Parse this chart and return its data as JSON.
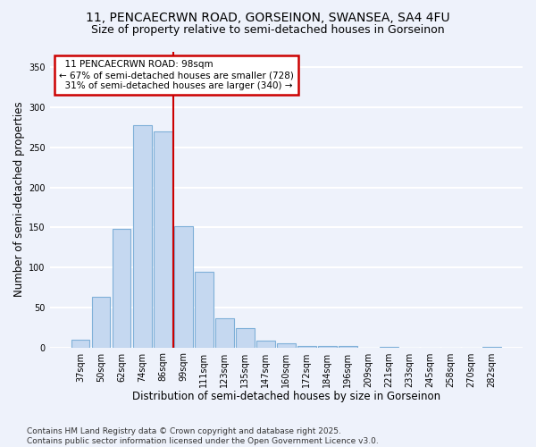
{
  "title_line1": "11, PENCAECRWN ROAD, GORSEINON, SWANSEA, SA4 4FU",
  "title_line2": "Size of property relative to semi-detached houses in Gorseinon",
  "xlabel": "Distribution of semi-detached houses by size in Gorseinon",
  "ylabel": "Number of semi-detached properties",
  "categories": [
    "37sqm",
    "50sqm",
    "62sqm",
    "74sqm",
    "86sqm",
    "99sqm",
    "111sqm",
    "123sqm",
    "135sqm",
    "147sqm",
    "160sqm",
    "172sqm",
    "184sqm",
    "196sqm",
    "209sqm",
    "221sqm",
    "233sqm",
    "245sqm",
    "258sqm",
    "270sqm",
    "282sqm"
  ],
  "values": [
    10,
    63,
    148,
    278,
    270,
    152,
    95,
    36,
    24,
    8,
    5,
    2,
    2,
    2,
    0,
    1,
    0,
    0,
    0,
    0,
    1
  ],
  "bar_color": "#c5d8f0",
  "bar_edge_color": "#7fb0d8",
  "subject_bar_index": 5,
  "subject_line_label": "11 PENCAECRWN ROAD: 98sqm",
  "pct_smaller": "67% of semi-detached houses are smaller (728)",
  "pct_larger": "31% of semi-detached houses are larger (340)",
  "annotation_box_edge": "#cc0000",
  "subject_line_color": "#cc0000",
  "ylim": [
    0,
    370
  ],
  "yticks": [
    0,
    50,
    100,
    150,
    200,
    250,
    300,
    350
  ],
  "footer_line1": "Contains HM Land Registry data © Crown copyright and database right 2025.",
  "footer_line2": "Contains public sector information licensed under the Open Government Licence v3.0.",
  "bg_color": "#eef2fb",
  "plot_bg_color": "#eef2fb",
  "grid_color": "#ffffff",
  "title_fontsize": 10,
  "subtitle_fontsize": 9,
  "axis_label_fontsize": 8.5,
  "tick_fontsize": 7,
  "footer_fontsize": 6.5,
  "ann_fontsize": 7.5
}
